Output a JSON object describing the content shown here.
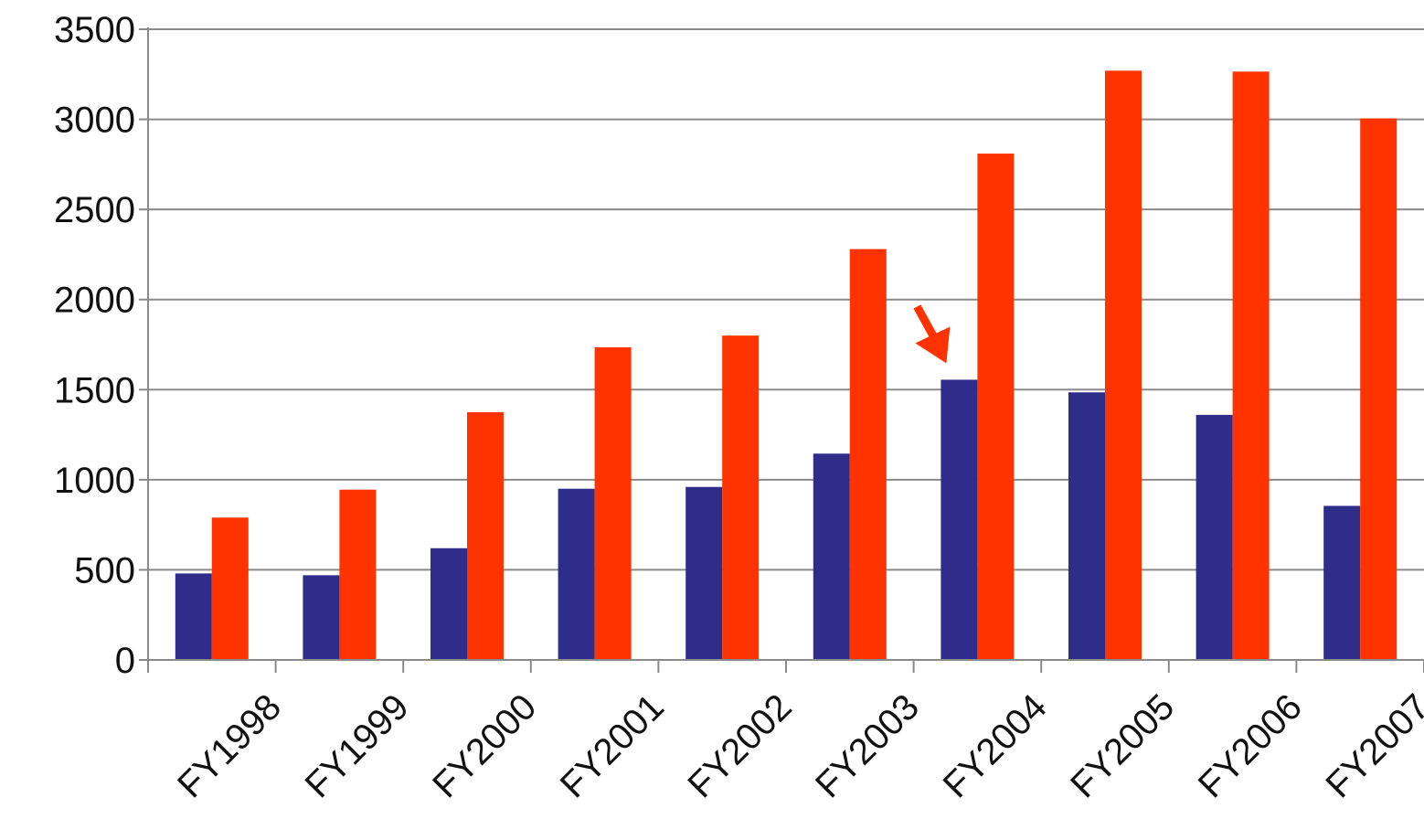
{
  "chart_data": {
    "type": "bar",
    "categories": [
      "FY1998",
      "FY1999",
      "FY2000",
      "FY2001",
      "FY2002",
      "FY2003",
      "FY2004",
      "FY2005",
      "FY2006",
      "FY2007"
    ],
    "series": [
      {
        "color": "#2e2e8a",
        "values": [
          480,
          470,
          620,
          950,
          960,
          1145,
          1555,
          1485,
          1360,
          855
        ]
      },
      {
        "color": "#ff3300",
        "values": [
          790,
          945,
          1375,
          1735,
          1800,
          2280,
          2810,
          3270,
          3265,
          3005
        ]
      }
    ],
    "ylim": [
      0,
      3500
    ],
    "yticks": [
      0,
      500,
      1000,
      1500,
      2000,
      2500,
      3000,
      3500
    ],
    "grid": true,
    "legend": "none",
    "annotations": [
      {
        "type": "arrow",
        "color": "#ff3300",
        "points_to": "FY2004"
      }
    ]
  }
}
